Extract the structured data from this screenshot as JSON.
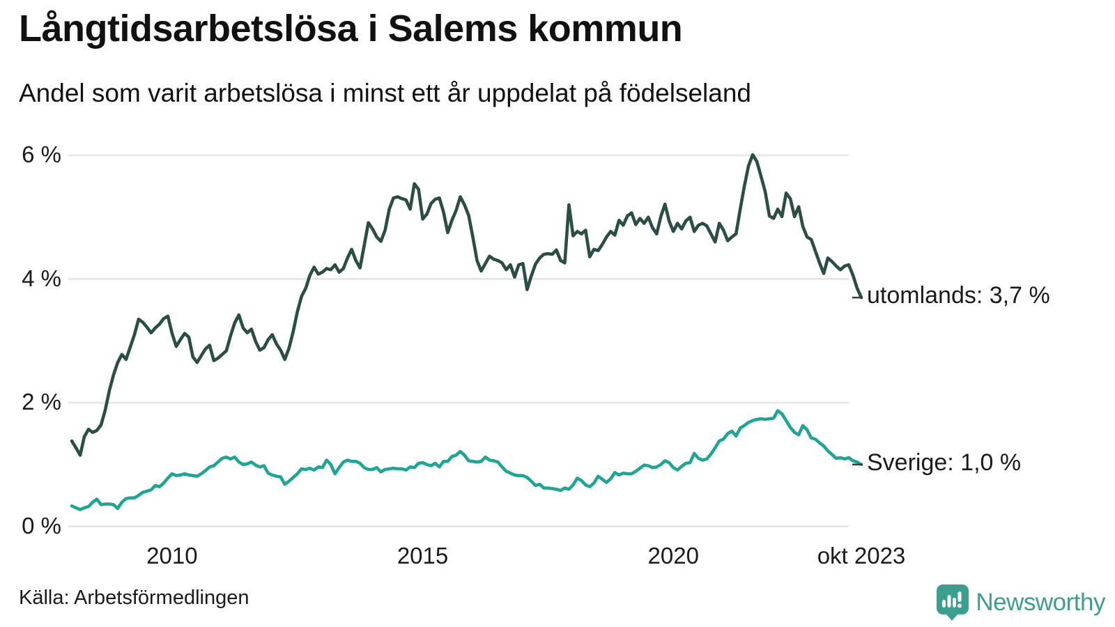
{
  "header": {
    "title": "Långtidsarbetslösa i Salems kommun",
    "subtitle": "Andel som varit arbetslösa i minst ett år uppdelat på födelseland"
  },
  "footer": {
    "source": "Källa: Arbetsförmedlingen",
    "brand": "Newsworthy"
  },
  "colors": {
    "utomlands_line": "#2a4d44",
    "sverige_line": "#21a493",
    "gridline": "#e8e8e8",
    "tick_dash": "#3a3a3a",
    "brand_teal": "#3b9e8f"
  },
  "chart_data": {
    "type": "line",
    "title": "Långtidsarbetslösa i Salems kommun",
    "subtitle": "Andel som varit arbetslösa i minst ett år uppdelat på födelseland",
    "x_unit": "month",
    "x_start": "2008-01",
    "x_end": "2023-10",
    "ylim": [
      0,
      6.3
    ],
    "grid": true,
    "legend_position": "end-of-line",
    "yticks": [
      {
        "value": 6,
        "label": "6 %"
      },
      {
        "value": 4,
        "label": "4 %"
      },
      {
        "value": 2,
        "label": "2 %"
      },
      {
        "value": 0,
        "label": "0 %"
      }
    ],
    "xticks": [
      {
        "month_index": 24,
        "label": "2010"
      },
      {
        "month_index": 84,
        "label": "2015"
      },
      {
        "month_index": 144,
        "label": "2020"
      },
      {
        "month_index": 189,
        "label": "okt 2023"
      }
    ],
    "series": [
      {
        "name": "utomlands",
        "end_label": "utomlands: 3,7 %",
        "last_value_display": "3,7 %",
        "color": "#2a4d44",
        "values": [
          1.38,
          1.27,
          1.15,
          1.45,
          1.57,
          1.52,
          1.55,
          1.64,
          1.88,
          2.2,
          2.45,
          2.65,
          2.78,
          2.7,
          2.9,
          3.1,
          3.35,
          3.3,
          3.22,
          3.13,
          3.21,
          3.27,
          3.36,
          3.4,
          3.12,
          2.91,
          3.02,
          3.12,
          3.06,
          2.74,
          2.65,
          2.76,
          2.87,
          2.93,
          2.68,
          2.72,
          2.78,
          2.84,
          3.08,
          3.29,
          3.42,
          3.21,
          3.13,
          3.19,
          2.99,
          2.85,
          2.89,
          3.02,
          3.1,
          2.95,
          2.85,
          2.7,
          2.88,
          3.15,
          3.47,
          3.72,
          3.85,
          4.06,
          4.19,
          4.08,
          4.11,
          4.17,
          4.15,
          4.23,
          4.11,
          4.17,
          4.34,
          4.48,
          4.3,
          4.18,
          4.54,
          4.91,
          4.81,
          4.68,
          4.61,
          4.79,
          5.13,
          5.31,
          5.33,
          5.3,
          5.28,
          5.13,
          5.54,
          5.45,
          4.97,
          5.05,
          5.22,
          5.29,
          5.31,
          5.08,
          4.75,
          4.95,
          5.11,
          5.33,
          5.2,
          5.03,
          4.68,
          4.3,
          4.13,
          4.25,
          4.37,
          4.32,
          4.3,
          4.26,
          4.15,
          4.23,
          4.03,
          4.23,
          4.25,
          3.83,
          4.05,
          4.24,
          4.34,
          4.4,
          4.41,
          4.4,
          4.47,
          4.3,
          4.26,
          5.2,
          4.7,
          4.77,
          4.73,
          4.79,
          4.36,
          4.48,
          4.46,
          4.56,
          4.68,
          4.77,
          4.71,
          4.95,
          4.87,
          5.02,
          5.07,
          4.88,
          4.98,
          4.9,
          5.0,
          4.83,
          4.73,
          5.01,
          5.21,
          4.94,
          4.77,
          4.9,
          4.81,
          4.94,
          5.0,
          4.77,
          4.87,
          4.9,
          4.86,
          4.73,
          4.6,
          4.9,
          4.79,
          4.62,
          4.68,
          4.73,
          5.13,
          5.5,
          5.83,
          6.01,
          5.9,
          5.66,
          5.41,
          5.02,
          4.98,
          5.13,
          5.01,
          5.39,
          5.3,
          5.01,
          5.17,
          4.85,
          4.68,
          4.64,
          4.45,
          4.26,
          4.09,
          4.34,
          4.28,
          4.21,
          4.15,
          4.21,
          4.23,
          4.06,
          3.85,
          3.7
        ]
      },
      {
        "name": "Sverige",
        "end_label": "Sverige: 1,0 %",
        "last_value_display": "1,0 %",
        "color": "#21a493",
        "values": [
          0.33,
          0.3,
          0.27,
          0.3,
          0.32,
          0.39,
          0.44,
          0.35,
          0.36,
          0.36,
          0.35,
          0.29,
          0.39,
          0.45,
          0.46,
          0.46,
          0.5,
          0.55,
          0.57,
          0.59,
          0.66,
          0.64,
          0.7,
          0.78,
          0.85,
          0.82,
          0.83,
          0.85,
          0.83,
          0.82,
          0.81,
          0.85,
          0.9,
          0.96,
          0.98,
          1.04,
          1.1,
          1.12,
          1.09,
          1.12,
          1.04,
          1.0,
          1.01,
          1.04,
          0.99,
          0.96,
          0.98,
          0.86,
          0.83,
          0.81,
          0.8,
          0.68,
          0.73,
          0.79,
          0.85,
          0.93,
          0.92,
          0.94,
          0.91,
          0.96,
          0.95,
          1.07,
          1.0,
          0.85,
          0.95,
          1.04,
          1.07,
          1.05,
          1.05,
          1.02,
          0.95,
          0.92,
          0.92,
          0.95,
          0.88,
          0.92,
          0.93,
          0.94,
          0.93,
          0.93,
          0.91,
          0.96,
          0.95,
          1.02,
          1.03,
          1.0,
          0.98,
          1.02,
          0.96,
          1.05,
          1.05,
          1.13,
          1.15,
          1.21,
          1.15,
          1.06,
          1.05,
          1.04,
          1.05,
          1.12,
          1.07,
          1.06,
          1.04,
          0.96,
          0.89,
          0.86,
          0.83,
          0.82,
          0.82,
          0.79,
          0.73,
          0.66,
          0.68,
          0.62,
          0.62,
          0.61,
          0.6,
          0.58,
          0.62,
          0.6,
          0.67,
          0.78,
          0.74,
          0.67,
          0.64,
          0.7,
          0.81,
          0.76,
          0.71,
          0.77,
          0.87,
          0.83,
          0.86,
          0.85,
          0.85,
          0.89,
          0.94,
          0.99,
          0.98,
          0.95,
          0.96,
          1.0,
          1.06,
          1.03,
          0.95,
          0.91,
          0.97,
          1.02,
          1.03,
          1.18,
          1.1,
          1.07,
          1.09,
          1.17,
          1.27,
          1.38,
          1.41,
          1.5,
          1.54,
          1.46,
          1.59,
          1.63,
          1.68,
          1.71,
          1.73,
          1.74,
          1.73,
          1.74,
          1.75,
          1.87,
          1.82,
          1.71,
          1.6,
          1.52,
          1.48,
          1.63,
          1.56,
          1.43,
          1.41,
          1.35,
          1.3,
          1.22,
          1.16,
          1.1,
          1.11,
          1.09,
          1.11,
          1.06,
          1.04,
          1.0
        ]
      }
    ]
  }
}
